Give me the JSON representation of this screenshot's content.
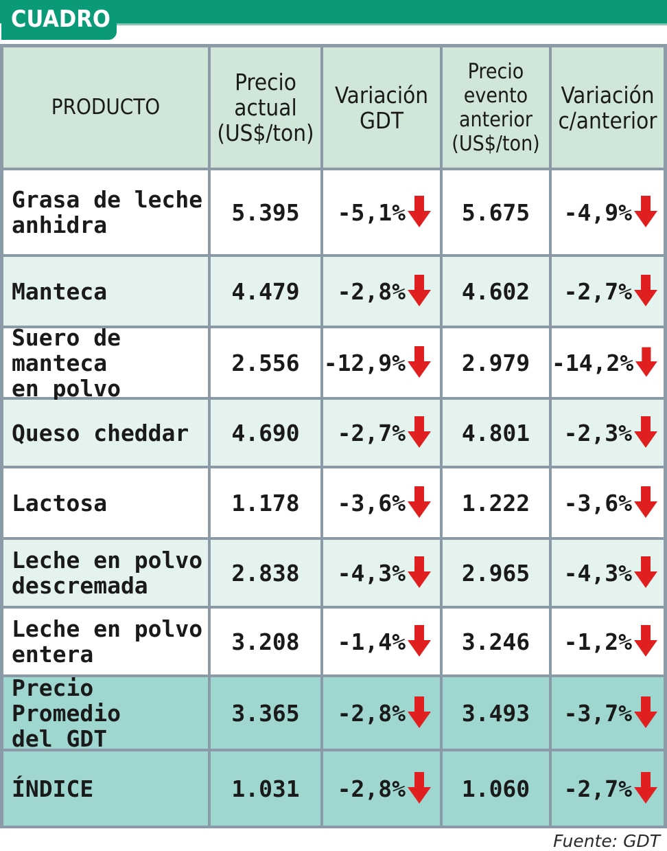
{
  "title": "CUADRO",
  "source": "Fuente: GDT",
  "colors": {
    "header": "#cfe6d8",
    "row_white": "#ffffff",
    "row_tint": "#e4f3ee",
    "row_teal": "#9fd6cf",
    "arrow": "#e02020",
    "accent": "#0b9a78"
  },
  "headers": {
    "producto": "PRODUCTO",
    "precio_actual": "Precio actual (US$/ton)",
    "variacion_gdt": "Variación GDT",
    "precio_anterior": "Precio evento anterior (US$/ton)",
    "variacion_anterior": "Variación c/anterior"
  },
  "rows": [
    {
      "producto": "Grasa de leche\nanhidra",
      "precio_actual": "5.395",
      "variacion_gdt": "-5,1%",
      "precio_anterior": "5.675",
      "variacion_anterior": "-4,9%",
      "trend": "down"
    },
    {
      "producto": "Manteca",
      "precio_actual": "4.479",
      "variacion_gdt": "-2,8%",
      "precio_anterior": "4.602",
      "variacion_anterior": "-2,7%",
      "trend": "down"
    },
    {
      "producto": "Suero de manteca\nen polvo",
      "precio_actual": "2.556",
      "variacion_gdt": "-12,9%",
      "precio_anterior": "2.979",
      "variacion_anterior": "-14,2%",
      "trend": "down"
    },
    {
      "producto": "Queso cheddar",
      "precio_actual": "4.690",
      "variacion_gdt": "-2,7%",
      "precio_anterior": "4.801",
      "variacion_anterior": "-2,3%",
      "trend": "down"
    },
    {
      "producto": "Lactosa",
      "precio_actual": "1.178",
      "variacion_gdt": "-3,6%",
      "precio_anterior": "1.222",
      "variacion_anterior": "-3,6%",
      "trend": "down"
    },
    {
      "producto": "Leche en polvo\ndescremada",
      "precio_actual": "2.838",
      "variacion_gdt": "-4,3%",
      "precio_anterior": "2.965",
      "variacion_anterior": "-4,3%",
      "trend": "down"
    },
    {
      "producto": "Leche en polvo\nentera",
      "precio_actual": "3.208",
      "variacion_gdt": "-1,4%",
      "precio_anterior": "3.246",
      "variacion_anterior": "-1,2%",
      "trend": "down"
    },
    {
      "producto": "Precio Promedio\ndel GDT",
      "precio_actual": "3.365",
      "variacion_gdt": "-2,8%",
      "precio_anterior": "3.493",
      "variacion_anterior": "-3,7%",
      "trend": "down"
    },
    {
      "producto": "ÍNDICE",
      "precio_actual": "1.031",
      "variacion_gdt": "-2,8%",
      "precio_anterior": "1.060",
      "variacion_anterior": "-2,7%",
      "trend": "down"
    }
  ]
}
